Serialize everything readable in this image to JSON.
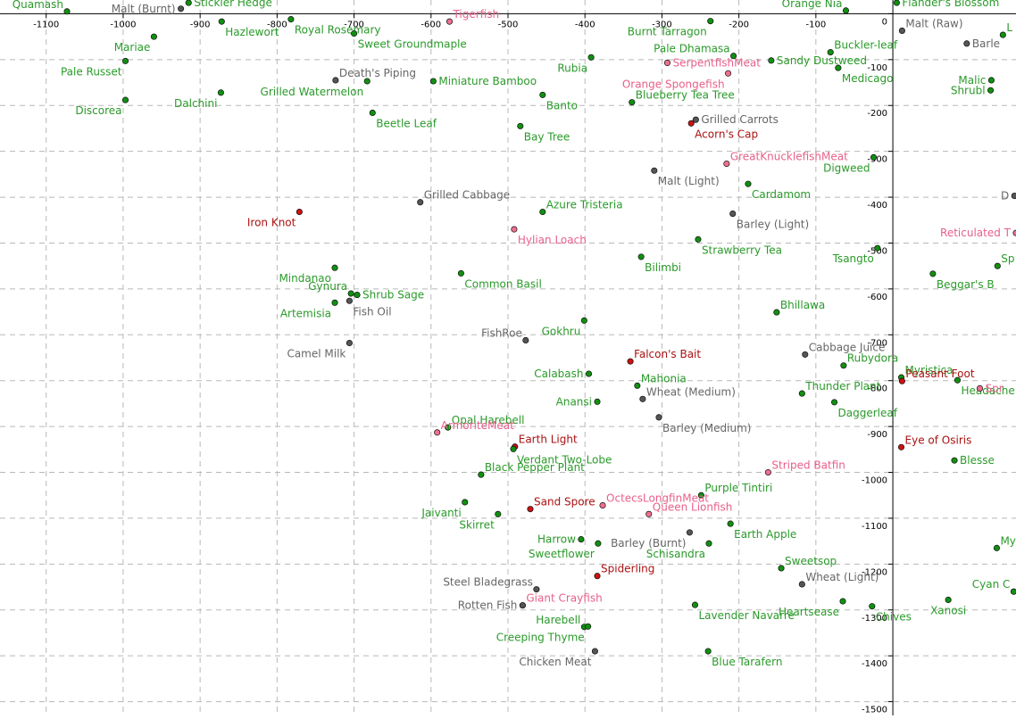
{
  "chart_data": {
    "type": "scatter",
    "grid": true,
    "xlim": [
      -1160,
      160
    ],
    "ylim": [
      -1530,
      30
    ],
    "x_ticks": [
      -1100,
      -1000,
      -900,
      -800,
      -700,
      -600,
      -500,
      -400,
      -300,
      -200,
      -100
    ],
    "y_ticks": [
      0,
      -100,
      -200,
      -300,
      -400,
      -500,
      -600,
      -700,
      -800,
      -900,
      -1000,
      -1100,
      -1200,
      -1300,
      -1400,
      -1500
    ],
    "x_tick_labels": [
      "-1100",
      "-1000",
      "-900",
      "-800",
      "-700",
      "-600",
      "-500",
      "-400",
      "-300",
      "-200",
      "-100"
    ],
    "y_tick_labels": [
      "0",
      "-100",
      "-200",
      "-300",
      "-400",
      "-500",
      "-600",
      "-700",
      "-800",
      "-900",
      "-1000",
      "-1100",
      "-1200",
      "-1300",
      "-1400",
      "-1500"
    ],
    "colors": {
      "green": {
        "dot": "#109010",
        "text": "#2a9a2a"
      },
      "gray": {
        "dot": "#555555",
        "text": "#666666"
      },
      "red": {
        "dot": "#cc1111",
        "text": "#aa1111"
      },
      "pink": {
        "dot": "#ee7090",
        "text": "#e8608a"
      },
      "axis": "#000000",
      "grid": "#b8b8b8"
    },
    "points": [
      {
        "name": "Quamash",
        "x": -1073,
        "y": 5,
        "c": "green",
        "a": "tl"
      },
      {
        "name": "Malt (Burnt)",
        "x": -925,
        "y": 11,
        "c": "gray",
        "a": "l"
      },
      {
        "name": "Stickler Hedge",
        "x": -915,
        "y": 24,
        "c": "green",
        "a": "r"
      },
      {
        "name": "Tigerfish",
        "x": -576,
        "y": -17,
        "c": "pink",
        "a": "tr"
      },
      {
        "name": "Hazlewort",
        "x": -872,
        "y": -17,
        "c": "green",
        "a": "br"
      },
      {
        "name": "Royal Rosemary",
        "x": -782,
        "y": -12,
        "c": "green",
        "a": "br"
      },
      {
        "name": "Mariae",
        "x": -960,
        "y": -50,
        "c": "green",
        "a": "bl"
      },
      {
        "name": "Sweet Groundmaple",
        "x": -700,
        "y": -43,
        "c": "green",
        "a": "br"
      },
      {
        "name": "Burnt Tarragon",
        "x": -237,
        "y": -16,
        "c": "green",
        "a": "bl"
      },
      {
        "name": "Orange Nia",
        "x": -61,
        "y": 7,
        "c": "green",
        "a": "tl"
      },
      {
        "name": "Flander's Blossom",
        "x": 5,
        "y": 24,
        "c": "green",
        "a": "r"
      },
      {
        "name": "Malt (Raw)",
        "x": 12,
        "y": -37,
        "c": "gray",
        "a": "tr"
      },
      {
        "name": "Buckler-leaf",
        "x": -81,
        "y": -84,
        "c": "green",
        "a": "tr"
      },
      {
        "name": "Pale Dhamasa",
        "x": -207,
        "y": -92,
        "c": "green",
        "a": "tl"
      },
      {
        "name": "Sandy Dustweed",
        "x": -158,
        "y": -102,
        "c": "green",
        "a": "r"
      },
      {
        "name": "SerpentfishMeat",
        "x": -293,
        "y": -107,
        "c": "pink",
        "a": "r"
      },
      {
        "name": "Pale Russet",
        "x": -997,
        "y": -103,
        "c": "green",
        "a": "bl"
      },
      {
        "name": "Medicago",
        "x": -71,
        "y": -118,
        "c": "green",
        "a": "br"
      },
      {
        "name": "Rubia",
        "x": -392,
        "y": -95,
        "c": "green",
        "a": "bl"
      },
      {
        "name": "Orange Spongefish",
        "x": -214,
        "y": -130,
        "c": "pink",
        "a": "bl"
      },
      {
        "name": "Death's Piping",
        "x": -724,
        "y": -145,
        "c": "gray",
        "a": "tr"
      },
      {
        "name": "Miniature Bamboo",
        "x": -597,
        "y": -147,
        "c": "green",
        "a": "r"
      },
      {
        "name": "Grilled Watermelon",
        "x": -683,
        "y": -147,
        "c": "green",
        "a": "bl"
      },
      {
        "name": "Blueberry Tea Tree",
        "x": -339,
        "y": -193,
        "c": "green",
        "a": "tr"
      },
      {
        "name": "Dalchini",
        "x": -873,
        "y": -172,
        "c": "green",
        "a": "bl"
      },
      {
        "name": "Banto",
        "x": -455,
        "y": -177,
        "c": "green",
        "a": "br"
      },
      {
        "name": "Discorea",
        "x": -997,
        "y": -188,
        "c": "green",
        "a": "bl"
      },
      {
        "name": "Grilled Carrots",
        "x": -256,
        "y": -231,
        "c": "gray",
        "a": "r"
      },
      {
        "name": "Acorn's Cap",
        "x": -262,
        "y": -239,
        "c": "red",
        "a": "br"
      },
      {
        "name": "Beetle Leaf",
        "x": -676,
        "y": -216,
        "c": "green",
        "a": "br"
      },
      {
        "name": "Bay Tree",
        "x": -484,
        "y": -245,
        "c": "green",
        "a": "br"
      },
      {
        "name": "GreatKnucklefishMeat",
        "x": -216,
        "y": -327,
        "c": "pink",
        "a": "tr"
      },
      {
        "name": "Digweed",
        "x": -25,
        "y": -313,
        "c": "green",
        "a": "bl"
      },
      {
        "name": "Malt (Light)",
        "x": -310,
        "y": -342,
        "c": "gray",
        "a": "br"
      },
      {
        "name": "Cardamom",
        "x": -188,
        "y": -371,
        "c": "green",
        "a": "br"
      },
      {
        "name": "Grilled Cabbage",
        "x": -614,
        "y": -411,
        "c": "gray",
        "a": "tr"
      },
      {
        "name": "Iron Knot",
        "x": -771,
        "y": -432,
        "c": "red",
        "a": "bl"
      },
      {
        "name": "Azure Tristeria",
        "x": -455,
        "y": -432,
        "c": "green",
        "a": "tr"
      },
      {
        "name": "Barley (Light)",
        "x": -208,
        "y": -436,
        "c": "gray",
        "a": "br"
      },
      {
        "name": "Hylian Loach",
        "x": -492,
        "y": -470,
        "c": "pink",
        "a": "br"
      },
      {
        "name": "Strawberry Tea",
        "x": -253,
        "y": -492,
        "c": "green",
        "a": "br"
      },
      {
        "name": "Tsangto",
        "x": -20,
        "y": -511,
        "c": "green",
        "a": "bl"
      },
      {
        "name": "Bilimbi",
        "x": -327,
        "y": -530,
        "c": "green",
        "a": "br"
      },
      {
        "name": "Mindanao",
        "x": -725,
        "y": -554,
        "c": "green",
        "a": "bl"
      },
      {
        "name": "Common Basil",
        "x": -561,
        "y": -566,
        "c": "green",
        "a": "br"
      },
      {
        "name": "Gynura",
        "x": -704,
        "y": -610,
        "c": "green",
        "a": "tl"
      },
      {
        "name": "Shrub Sage",
        "x": -696,
        "y": -613,
        "c": "green",
        "a": "r"
      },
      {
        "name": "Artemisia",
        "x": -725,
        "y": -630,
        "c": "green",
        "a": "bl"
      },
      {
        "name": "Fish Oil",
        "x": -706,
        "y": -626,
        "c": "gray",
        "a": "br"
      },
      {
        "name": "Bhillawa",
        "x": -151,
        "y": -651,
        "c": "green",
        "a": "tr"
      },
      {
        "name": "Gokhru",
        "x": -401,
        "y": -669,
        "c": "green",
        "a": "bl"
      },
      {
        "name": "FishRoe",
        "x": -477,
        "y": -712,
        "c": "gray",
        "a": "tl"
      },
      {
        "name": "Camel Milk",
        "x": -706,
        "y": -718,
        "c": "gray",
        "a": "bl"
      },
      {
        "name": "Falcon's Bait",
        "x": -341,
        "y": -758,
        "c": "red",
        "a": "tr"
      },
      {
        "name": "Cabbage Juice",
        "x": -114,
        "y": -743,
        "c": "gray",
        "a": "tr"
      },
      {
        "name": "Rubydora",
        "x": -64,
        "y": -767,
        "c": "green",
        "a": "tr"
      },
      {
        "name": "Myristica",
        "x": 11,
        "y": -793,
        "c": "green",
        "a": "tr"
      },
      {
        "name": "Peasant Foot",
        "x": 12,
        "y": -801,
        "c": "red",
        "a": "tr"
      },
      {
        "name": "Calabash",
        "x": -395,
        "y": -785,
        "c": "green",
        "a": "l"
      },
      {
        "name": "Mahonia",
        "x": -332,
        "y": -811,
        "c": "green",
        "a": "tr"
      },
      {
        "name": "Thunder Plant",
        "x": -118,
        "y": -828,
        "c": "green",
        "a": "tr"
      },
      {
        "name": "Wheat (Medium)",
        "x": -325,
        "y": -840,
        "c": "gray",
        "a": "tr"
      },
      {
        "name": "Anansi",
        "x": -384,
        "y": -846,
        "c": "green",
        "a": "l"
      },
      {
        "name": "Daggerleaf",
        "x": -76,
        "y": -847,
        "c": "green",
        "a": "br"
      },
      {
        "name": "Barley (Medium)",
        "x": -304,
        "y": -880,
        "c": "gray",
        "a": "br"
      },
      {
        "name": "Opal Harebell",
        "x": -578,
        "y": -902,
        "c": "green",
        "a": "tr"
      },
      {
        "name": "ArmoriteMeat",
        "x": -592,
        "y": -913,
        "c": "pink",
        "a": "tr"
      },
      {
        "name": "Eye of Osiris",
        "x": 11,
        "y": -945,
        "c": "red",
        "a": "tr"
      },
      {
        "name": "Earth Light",
        "x": -491,
        "y": -944,
        "c": "red",
        "a": "tr"
      },
      {
        "name": "Verdant Two-Lobe",
        "x": -493,
        "y": -949,
        "c": "green",
        "a": "br"
      },
      {
        "name": "Striped Batfin",
        "x": -162,
        "y": -1000,
        "c": "pink",
        "a": "tr"
      },
      {
        "name": "Black Pepper Plant",
        "x": -535,
        "y": -1005,
        "c": "green",
        "a": "tr"
      },
      {
        "name": "Purple Tintiri",
        "x": -249,
        "y": -1050,
        "c": "green",
        "a": "tr"
      },
      {
        "name": "Jaivanti",
        "x": -556,
        "y": -1065,
        "c": "green",
        "a": "bl"
      },
      {
        "name": "Sand Spore",
        "x": -471,
        "y": -1080,
        "c": "red",
        "a": "tr"
      },
      {
        "name": "OctecsLongfinMeat",
        "x": -377,
        "y": -1072,
        "c": "pink",
        "a": "tr"
      },
      {
        "name": "Queen Lionfish",
        "x": -317,
        "y": -1091,
        "c": "pink",
        "a": "tr"
      },
      {
        "name": "Skirret",
        "x": -513,
        "y": -1091,
        "c": "green",
        "a": "bl"
      },
      {
        "name": "Earth Apple",
        "x": -211,
        "y": -1112,
        "c": "green",
        "a": "br"
      },
      {
        "name": "Barley (Burnt)",
        "x": -264,
        "y": -1131,
        "c": "gray",
        "a": "bl"
      },
      {
        "name": "Harrow",
        "x": -405,
        "y": -1146,
        "c": "green",
        "a": "l"
      },
      {
        "name": "Schisandra",
        "x": -239,
        "y": -1155,
        "c": "green",
        "a": "bl"
      },
      {
        "name": "Sweetflower",
        "x": -383,
        "y": -1155,
        "c": "green",
        "a": "bl"
      },
      {
        "name": "Sweetsop",
        "x": -145,
        "y": -1209,
        "c": "green",
        "a": "tr"
      },
      {
        "name": "Spiderling",
        "x": -384,
        "y": -1226,
        "c": "red",
        "a": "tr"
      },
      {
        "name": "Wheat (Light)",
        "x": -118,
        "y": -1244,
        "c": "gray",
        "a": "tr"
      },
      {
        "name": "Steel Bladegrass",
        "x": -463,
        "y": -1255,
        "c": "gray",
        "a": "tl"
      },
      {
        "name": "Giant Crayfish",
        "x": -481,
        "y": -1290,
        "c": "pink",
        "a": "tr"
      },
      {
        "name": "Rotten Fish",
        "x": -481,
        "y": -1290,
        "c": "gray",
        "a": "l"
      },
      {
        "name": "Heartsease",
        "x": -65,
        "y": -1281,
        "c": "green",
        "a": "bl"
      },
      {
        "name": "Chives",
        "x": -27,
        "y": -1292,
        "c": "green",
        "a": "br"
      },
      {
        "name": "Lavender Navarre",
        "x": -257,
        "y": -1289,
        "c": "green",
        "a": "br"
      },
      {
        "name": "Harebell",
        "x": -401,
        "y": -1337,
        "c": "green",
        "a": "tl"
      },
      {
        "name": "Creeping Thyme",
        "x": -396,
        "y": -1336,
        "c": "green",
        "a": "bl"
      },
      {
        "name": "Chicken Meat",
        "x": -387,
        "y": -1390,
        "c": "gray",
        "a": "bl"
      },
      {
        "name": "Blue Tarafern",
        "x": -240,
        "y": -1390,
        "c": "green",
        "a": "br"
      },
      {
        "name": "Xanosi",
        "x": 72,
        "y": -1278,
        "c": "green",
        "a": "b"
      },
      {
        "name": "Beggar's B",
        "x": 52,
        "y": -567,
        "c": "green",
        "a": "br"
      },
      {
        "name": "Headache",
        "x": 84,
        "y": -799,
        "c": "green",
        "a": "br"
      },
      {
        "name": "Spr",
        "x": 113,
        "y": -817,
        "c": "pink",
        "a": "r"
      },
      {
        "name": "Reticulated T",
        "x": 160,
        "y": -478,
        "c": "pink",
        "a": "l"
      },
      {
        "name": "Cyan C",
        "x": 157,
        "y": -1260,
        "c": "green",
        "a": "tl"
      },
      {
        "name": "My",
        "x": 135,
        "y": -1165,
        "c": "green",
        "a": "tr"
      },
      {
        "name": "Blesse",
        "x": 80,
        "y": -974,
        "c": "green",
        "a": "r"
      },
      {
        "name": "Sp",
        "x": 136,
        "y": -550,
        "c": "green",
        "a": "tr"
      },
      {
        "name": "Barle",
        "x": 96,
        "y": -65,
        "c": "gray",
        "a": "r"
      },
      {
        "name": "L",
        "x": 143,
        "y": -46,
        "c": "green",
        "a": "tr"
      },
      {
        "name": "Malic",
        "x": 128,
        "y": -145,
        "c": "green",
        "a": "l"
      },
      {
        "name": "Shrubl",
        "x": 127,
        "y": -167,
        "c": "green",
        "a": "l"
      },
      {
        "name": "D",
        "x": 158,
        "y": -397,
        "c": "gray",
        "a": "l"
      }
    ]
  }
}
